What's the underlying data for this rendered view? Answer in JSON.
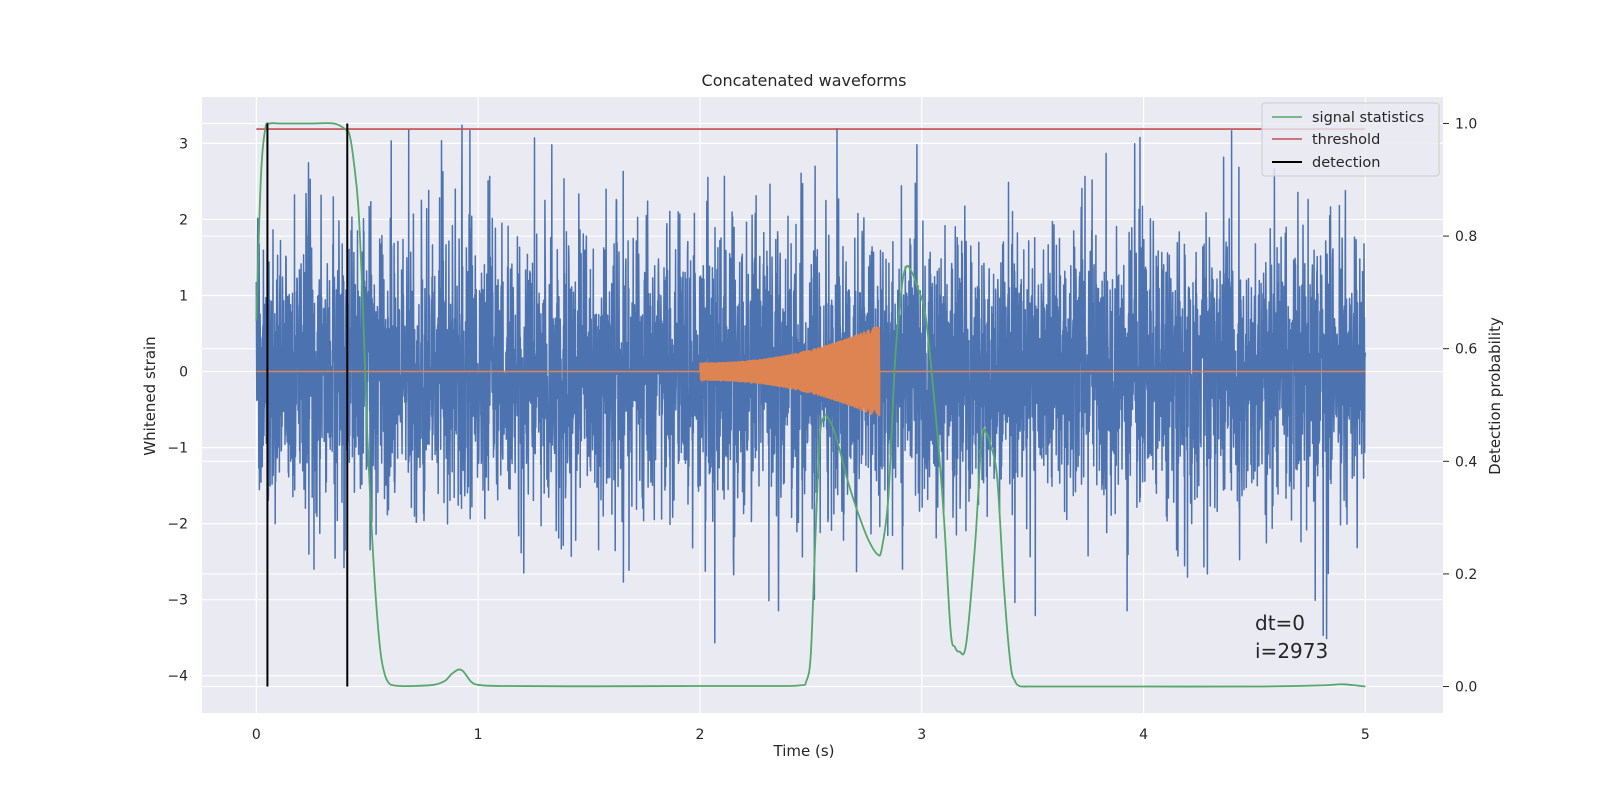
{
  "chart_data": {
    "type": "line",
    "title": "Concatenated waveforms",
    "xlabel": "Time (s)",
    "ylabel": "Whitened strain",
    "y2label": "Detection probability",
    "xlim": [
      -0.245,
      5.35
    ],
    "ylim": [
      -4.49,
      3.61
    ],
    "y2lim": [
      -0.047,
      1.047
    ],
    "xticks": [
      0,
      1,
      2,
      3,
      4,
      5
    ],
    "yticks": [
      -4,
      -3,
      -2,
      -1,
      0,
      1,
      2,
      3
    ],
    "y2ticks": [
      0.0,
      0.2,
      0.4,
      0.6,
      0.8,
      1.0
    ],
    "xtick_labels": [
      "0",
      "1",
      "2",
      "3",
      "4",
      "5"
    ],
    "ytick_labels": [
      "−4",
      "−3",
      "−2",
      "−1",
      "0",
      "1",
      "2",
      "3"
    ],
    "y2tick_labels": [
      "0.0",
      "0.2",
      "0.4",
      "0.6",
      "0.8",
      "1.0"
    ],
    "grid": true,
    "legend_position": "top-right",
    "legend": [
      "signal statistics",
      "threshold",
      "detection"
    ],
    "annotations": [
      "dt=0",
      "i=2973"
    ],
    "series": [
      {
        "name": "whitened strain",
        "axis": "left",
        "color": "#4c72b0",
        "kind": "noise",
        "x_range": [
          0,
          5
        ],
        "samples": 5000,
        "typical_range": [
          -1.8,
          1.8
        ],
        "extremes": [
          3.25,
          -4.1
        ]
      },
      {
        "name": "injected waveform",
        "axis": "left",
        "color": "#dd8452",
        "kind": "chirp",
        "x_range": [
          0,
          5
        ],
        "chirp_start": 2.0,
        "chirp_end": 2.81,
        "amplitude_start": 0.12,
        "amplitude_end": 0.62
      },
      {
        "name": "signal statistics",
        "axis": "right",
        "color": "#55a868",
        "x": [
          0,
          0.02,
          0.04,
          0.06,
          0.1,
          0.15,
          0.25,
          0.35,
          0.4,
          0.42,
          0.44,
          0.46,
          0.48,
          0.5,
          0.52,
          0.54,
          0.56,
          0.58,
          0.6,
          0.62,
          0.65,
          0.7,
          0.8,
          0.85,
          0.88,
          0.91,
          0.93,
          0.95,
          0.97,
          1.0,
          1.1,
          1.5,
          2.0,
          2.3,
          2.45,
          2.48,
          2.5,
          2.52,
          2.54,
          2.56,
          2.58,
          2.6,
          2.63,
          2.67,
          2.72,
          2.76,
          2.8,
          2.82,
          2.85,
          2.88,
          2.91,
          2.93,
          2.95,
          2.98,
          3.02,
          3.07,
          3.1,
          3.13,
          3.15,
          3.17,
          3.2,
          3.24,
          3.27,
          3.29,
          3.31,
          3.34,
          3.37,
          3.4,
          3.42,
          3.44,
          3.47,
          3.5,
          4.0,
          4.5,
          4.8,
          4.9,
          5.0
        ],
        "y": [
          0.65,
          0.9,
          0.99,
          1.0,
          1.0,
          1.0,
          1.0,
          1.0,
          0.99,
          0.98,
          0.93,
          0.85,
          0.68,
          0.45,
          0.28,
          0.15,
          0.06,
          0.02,
          0.005,
          0.002,
          0.001,
          0.001,
          0.003,
          0.01,
          0.022,
          0.03,
          0.028,
          0.018,
          0.008,
          0.003,
          0.001,
          0.0005,
          0.001,
          0.001,
          0.002,
          0.01,
          0.06,
          0.26,
          0.44,
          0.48,
          0.475,
          0.46,
          0.42,
          0.36,
          0.3,
          0.26,
          0.235,
          0.245,
          0.34,
          0.58,
          0.71,
          0.745,
          0.74,
          0.71,
          0.65,
          0.45,
          0.3,
          0.1,
          0.07,
          0.062,
          0.075,
          0.25,
          0.44,
          0.45,
          0.43,
          0.37,
          0.18,
          0.04,
          0.01,
          0.001,
          0.0,
          0.0,
          0.0,
          0.0,
          0.002,
          0.004,
          0.0
        ]
      },
      {
        "name": "threshold",
        "axis": "right",
        "color": "#c44e52",
        "x": [
          0,
          5
        ],
        "y": [
          0.99,
          0.99
        ]
      },
      {
        "name": "detection",
        "axis": "right",
        "color": "#000000",
        "kind": "vlines",
        "x": [
          0.05,
          0.41
        ],
        "ymin": 0.0,
        "ymax": 1.0
      }
    ]
  }
}
